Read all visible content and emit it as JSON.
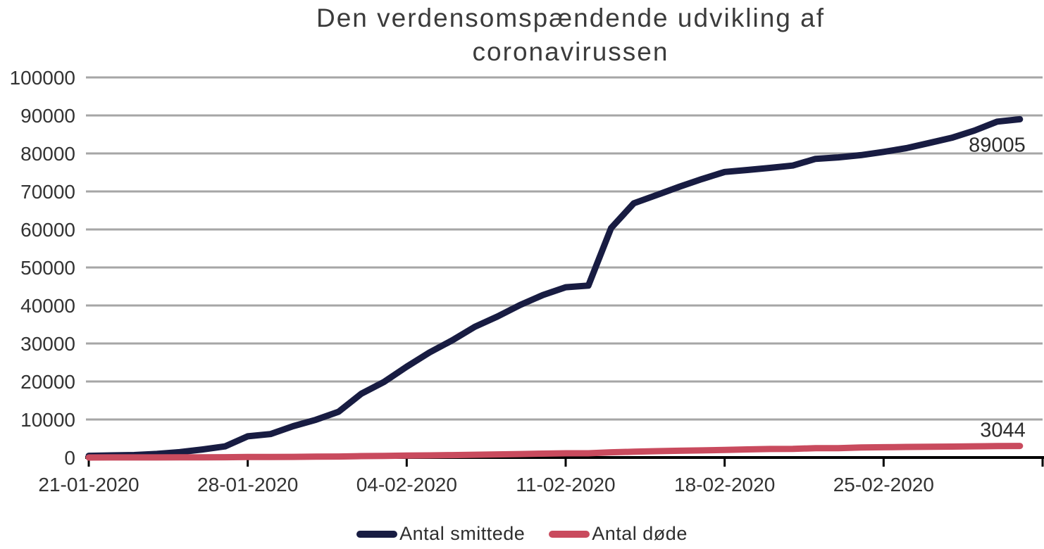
{
  "title": {
    "text": "Den verdensomspændende udvikling af coronavirussen"
  },
  "colors": {
    "infected": "#181c42",
    "deaths": "#c94b5e",
    "grid": "#a6a6a6",
    "axis": "#000000",
    "tick_text": "#333333",
    "title_text": "#3b3b3b"
  },
  "legend": {
    "items": [
      {
        "label": "Antal smittede",
        "color": "#181c42"
      },
      {
        "label": "Antal døde",
        "color": "#c94b5e"
      }
    ]
  },
  "chart_data": {
    "type": "line",
    "title": "Den verdensomspændende udvikling af coronavirussen",
    "grid": true,
    "legend_position": "bottom",
    "x_axis": {
      "tick_labels": [
        "21-01-2020",
        "28-01-2020",
        "04-02-2020",
        "11-02-2020",
        "18-02-2020",
        "25-02-2020"
      ],
      "tick_interval_days": 7,
      "start_date": "21-01-2020",
      "end_date": "02-03-2020"
    },
    "y_axis": {
      "min": 0,
      "max": 100000,
      "tick_step": 10000,
      "tick_labels": [
        "0",
        "10000",
        "20000",
        "30000",
        "40000",
        "50000",
        "60000",
        "70000",
        "80000",
        "90000",
        "100000"
      ]
    },
    "x_dates": [
      "21-01-2020",
      "22-01-2020",
      "23-01-2020",
      "24-01-2020",
      "25-01-2020",
      "26-01-2020",
      "27-01-2020",
      "28-01-2020",
      "29-01-2020",
      "30-01-2020",
      "31-01-2020",
      "01-02-2020",
      "02-02-2020",
      "03-02-2020",
      "04-02-2020",
      "05-02-2020",
      "06-02-2020",
      "07-02-2020",
      "08-02-2020",
      "09-02-2020",
      "10-02-2020",
      "11-02-2020",
      "12-02-2020",
      "13-02-2020",
      "14-02-2020",
      "15-02-2020",
      "16-02-2020",
      "17-02-2020",
      "18-02-2020",
      "19-02-2020",
      "20-02-2020",
      "21-02-2020",
      "22-02-2020",
      "23-02-2020",
      "24-02-2020",
      "25-02-2020",
      "26-02-2020",
      "27-02-2020",
      "28-02-2020",
      "29-02-2020",
      "01-03-2020",
      "02-03-2020"
    ],
    "series": [
      {
        "name": "Antal smittede",
        "color": "#181c42",
        "end_label": "89005",
        "end_label_placement": "below-end",
        "values": [
          440,
          555,
          654,
          941,
          1434,
          2118,
          2927,
          5578,
          6166,
          8234,
          9927,
          12038,
          16787,
          19881,
          23892,
          27635,
          30817,
          34391,
          37120,
          40150,
          42762,
          44802,
          45221,
          60368,
          66885,
          69030,
          71224,
          73258,
          75136,
          75639,
          76197,
          76819,
          78572,
          78958,
          79561,
          80406,
          81388,
          82746,
          84112,
          86011,
          88369,
          89005
        ]
      },
      {
        "name": "Antal døde",
        "color": "#c94b5e",
        "end_label": "3044",
        "end_label_placement": "above-end",
        "values": [
          9,
          17,
          18,
          26,
          42,
          56,
          82,
          131,
          133,
          171,
          213,
          259,
          362,
          426,
          492,
          564,
          634,
          719,
          806,
          906,
          1013,
          1113,
          1118,
          1371,
          1523,
          1666,
          1770,
          1868,
          2007,
          2122,
          2247,
          2251,
          2458,
          2469,
          2629,
          2708,
          2770,
          2814,
          2872,
          2941,
          2996,
          3044
        ]
      }
    ]
  }
}
